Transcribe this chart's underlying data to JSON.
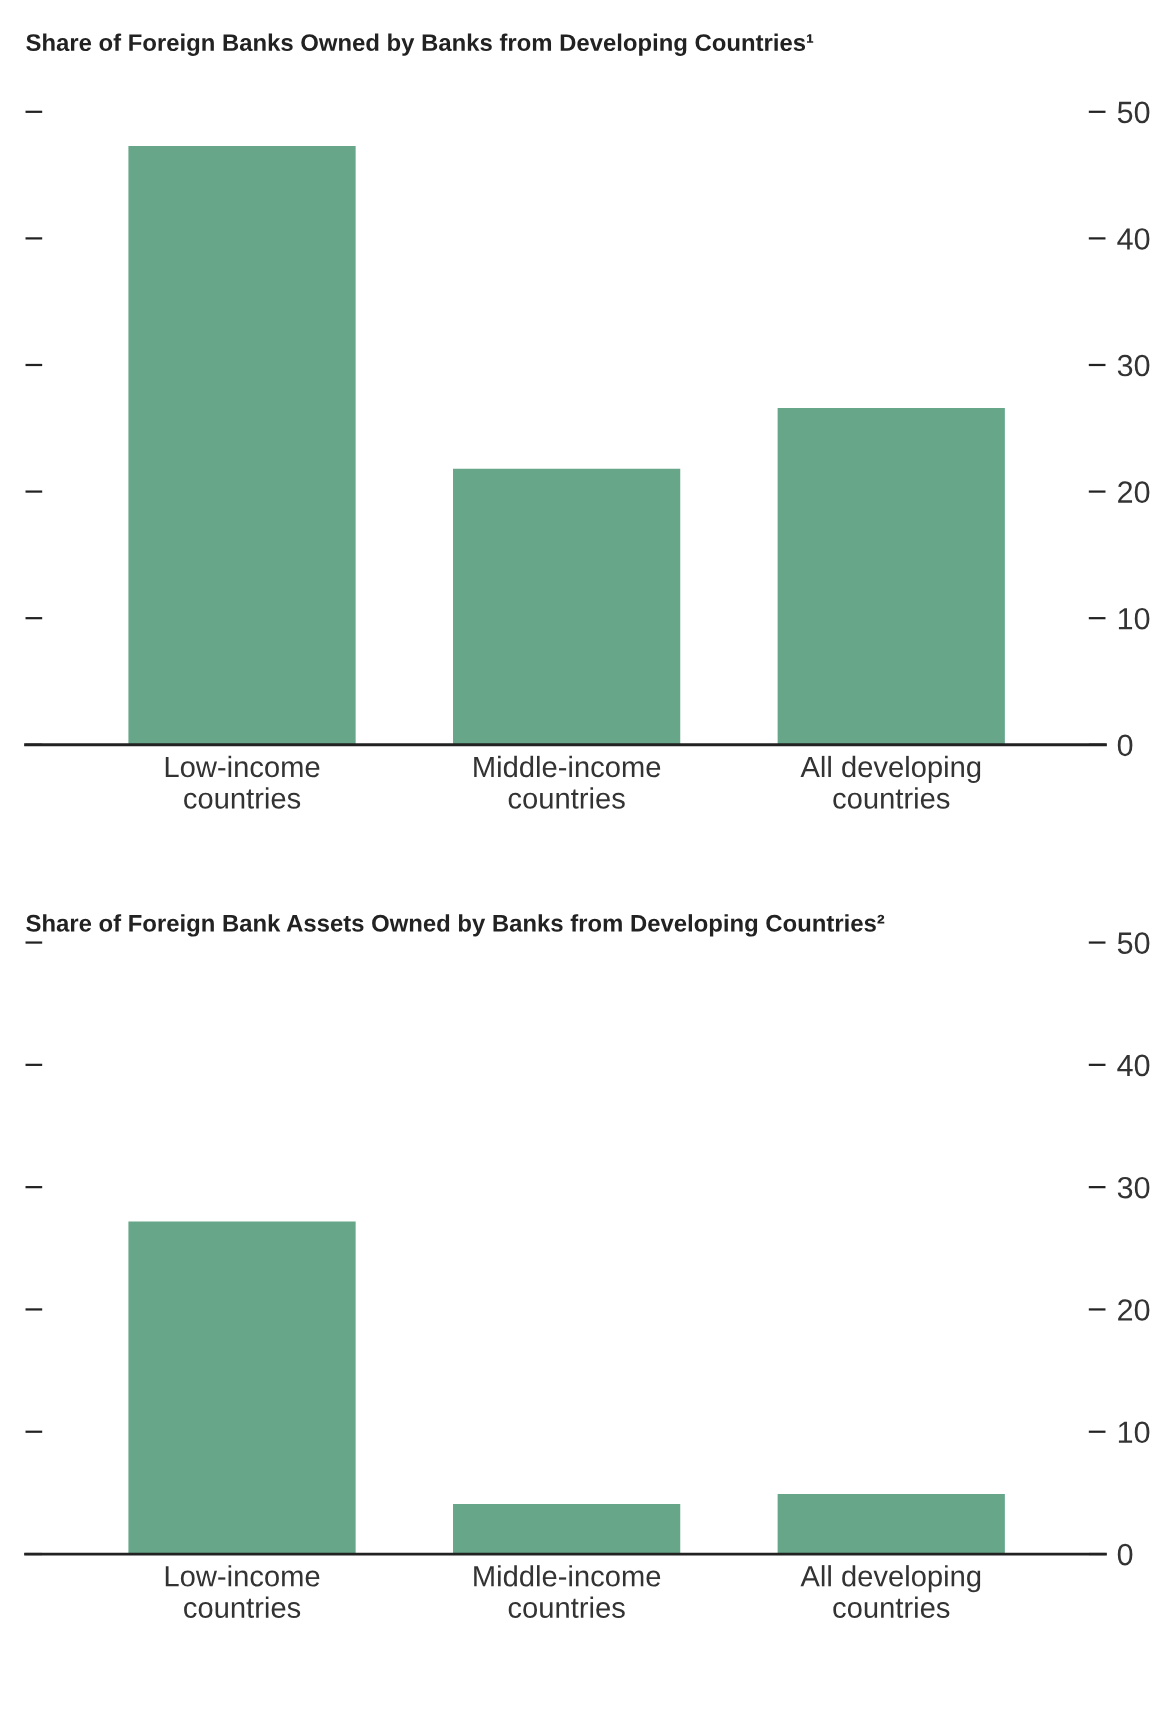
{
  "chart_data": [
    {
      "type": "bar",
      "title": "Share of Foreign Banks Owned by Banks from Developing Countries¹",
      "categories": [
        "Low-income\ncountries",
        "Middle-income\ncountries",
        "All developing\ncountries"
      ],
      "values": [
        47.3,
        21.8,
        26.6
      ],
      "color": "#67a689",
      "ylim": [
        0,
        50
      ],
      "yticks": [
        0,
        10,
        20,
        30,
        40,
        50
      ],
      "grid": false,
      "legend": false
    },
    {
      "type": "bar",
      "title": "Share of Foreign Bank Assets Owned by Banks from Developing Countries²",
      "categories": [
        "Low-income\ncountries",
        "Middle-income\ncountries",
        "All developing\ncountries"
      ],
      "values": [
        27.2,
        4.1,
        4.9
      ],
      "color": "#67a689",
      "ylim": [
        0,
        50
      ],
      "yticks": [
        0,
        10,
        20,
        30,
        40,
        50
      ],
      "grid": false,
      "legend": false
    }
  ]
}
